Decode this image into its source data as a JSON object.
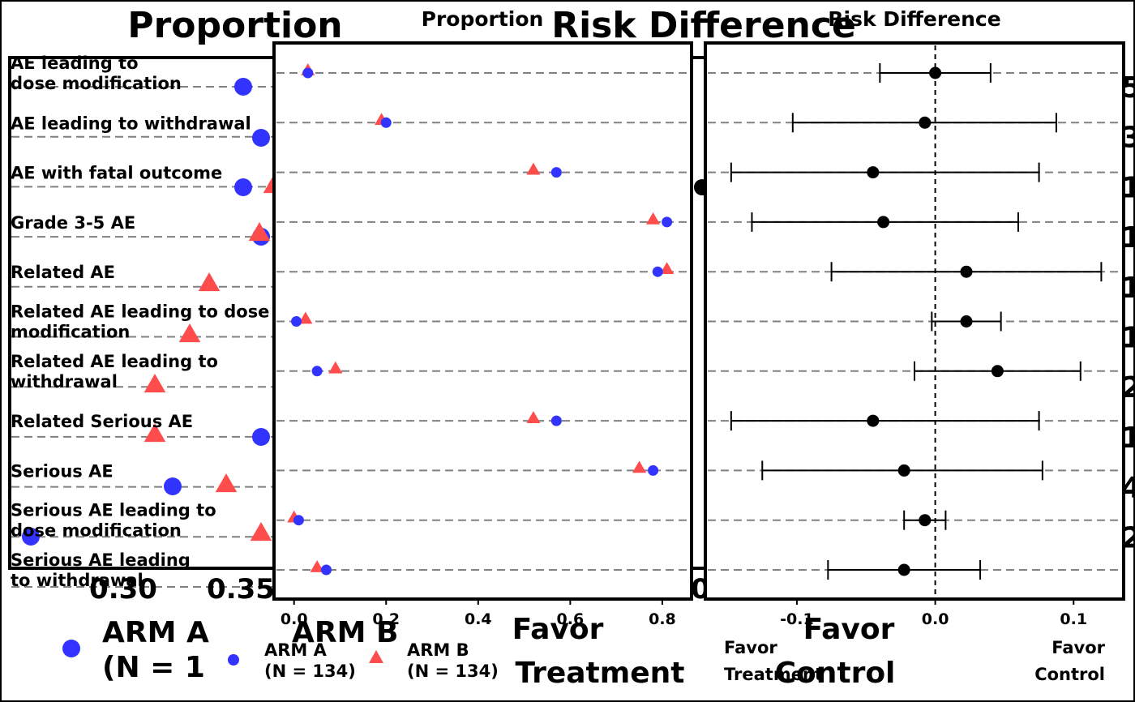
{
  "back_layer": {
    "title_proportion": "Proportion",
    "title_risk_difference": "Risk Difference",
    "x_ticks": [
      "0.30",
      "0.35",
      "0"
    ],
    "favor_treatment": [
      "Favor",
      "Treatment"
    ],
    "favor_control": [
      "Favor",
      "Control"
    ],
    "legend": {
      "arm_a": [
        "ARM A",
        "(N = 1"
      ],
      "arm_b": "ARM B"
    },
    "right_edge_digits": [
      "5",
      "3",
      "1",
      "1",
      "1",
      "1",
      "2",
      "1",
      "4",
      "2"
    ]
  },
  "chart_data": [
    {
      "type": "scatter",
      "title": "Proportion",
      "categories": [
        "AE leading to dose modification",
        "AE leading to withdrawal",
        "AE with fatal outcome",
        "Grade 3-5 AE",
        "Related AE",
        "Related AE leading to dose modification",
        "Related AE leading to withdrawal",
        "Related Serious AE",
        "Serious AE",
        "Serious AE leading to dose modification",
        "Serious AE leading to withdrawal"
      ],
      "xlim": [
        -0.04,
        0.86
      ],
      "x_ticks": [
        "0.0",
        "0.2",
        "0.4",
        "0.6",
        "0.8"
      ],
      "series": [
        {
          "name": "ARM A\n(N = 134)",
          "marker": "circle",
          "color": "#3333FF",
          "values": [
            0.03,
            0.2,
            0.57,
            0.81,
            0.79,
            0.005,
            0.05,
            0.57,
            0.78,
            0.01,
            0.07
          ]
        },
        {
          "name": "ARM B\n(N = 134)",
          "marker": "triangle",
          "color": "#FF4D4D",
          "values": [
            0.03,
            0.19,
            0.52,
            0.78,
            0.81,
            0.025,
            0.09,
            0.52,
            0.75,
            0.0,
            0.05
          ]
        }
      ],
      "grid": "horizontal dashed",
      "legend": "bottom"
    },
    {
      "type": "forest",
      "title": "Risk Difference",
      "categories": [
        "AE leading to dose modification",
        "AE leading to withdrawal",
        "AE with fatal outcome",
        "Grade 3-5 AE",
        "Related AE",
        "Related AE leading to dose modification",
        "Related AE leading to withdrawal",
        "Related Serious AE",
        "Serious AE",
        "Serious AE leading to dose modification",
        "Serious AE leading to withdrawal"
      ],
      "xlim": [
        -0.165,
        0.135
      ],
      "x_ticks": [
        "-0.1",
        "0.0",
        "0.1"
      ],
      "reference_line": 0,
      "estimates": [
        0.0,
        -0.0075,
        -0.045,
        -0.0375,
        0.0225,
        0.0225,
        0.045,
        -0.045,
        -0.0225,
        -0.0075,
        -0.0225
      ],
      "ci_lower": [
        -0.04,
        -0.103,
        -0.1475,
        -0.1325,
        -0.075,
        -0.0025,
        -0.015,
        -0.1475,
        -0.125,
        -0.0225,
        -0.0775
      ],
      "ci_upper": [
        0.04,
        0.0875,
        0.075,
        0.06,
        0.12,
        0.0475,
        0.105,
        0.075,
        0.0775,
        0.0075,
        0.0325
      ],
      "favor_left": [
        "Favor",
        "Treatment"
      ],
      "favor_right": [
        "Favor",
        "Control"
      ],
      "color": "#000000"
    }
  ]
}
